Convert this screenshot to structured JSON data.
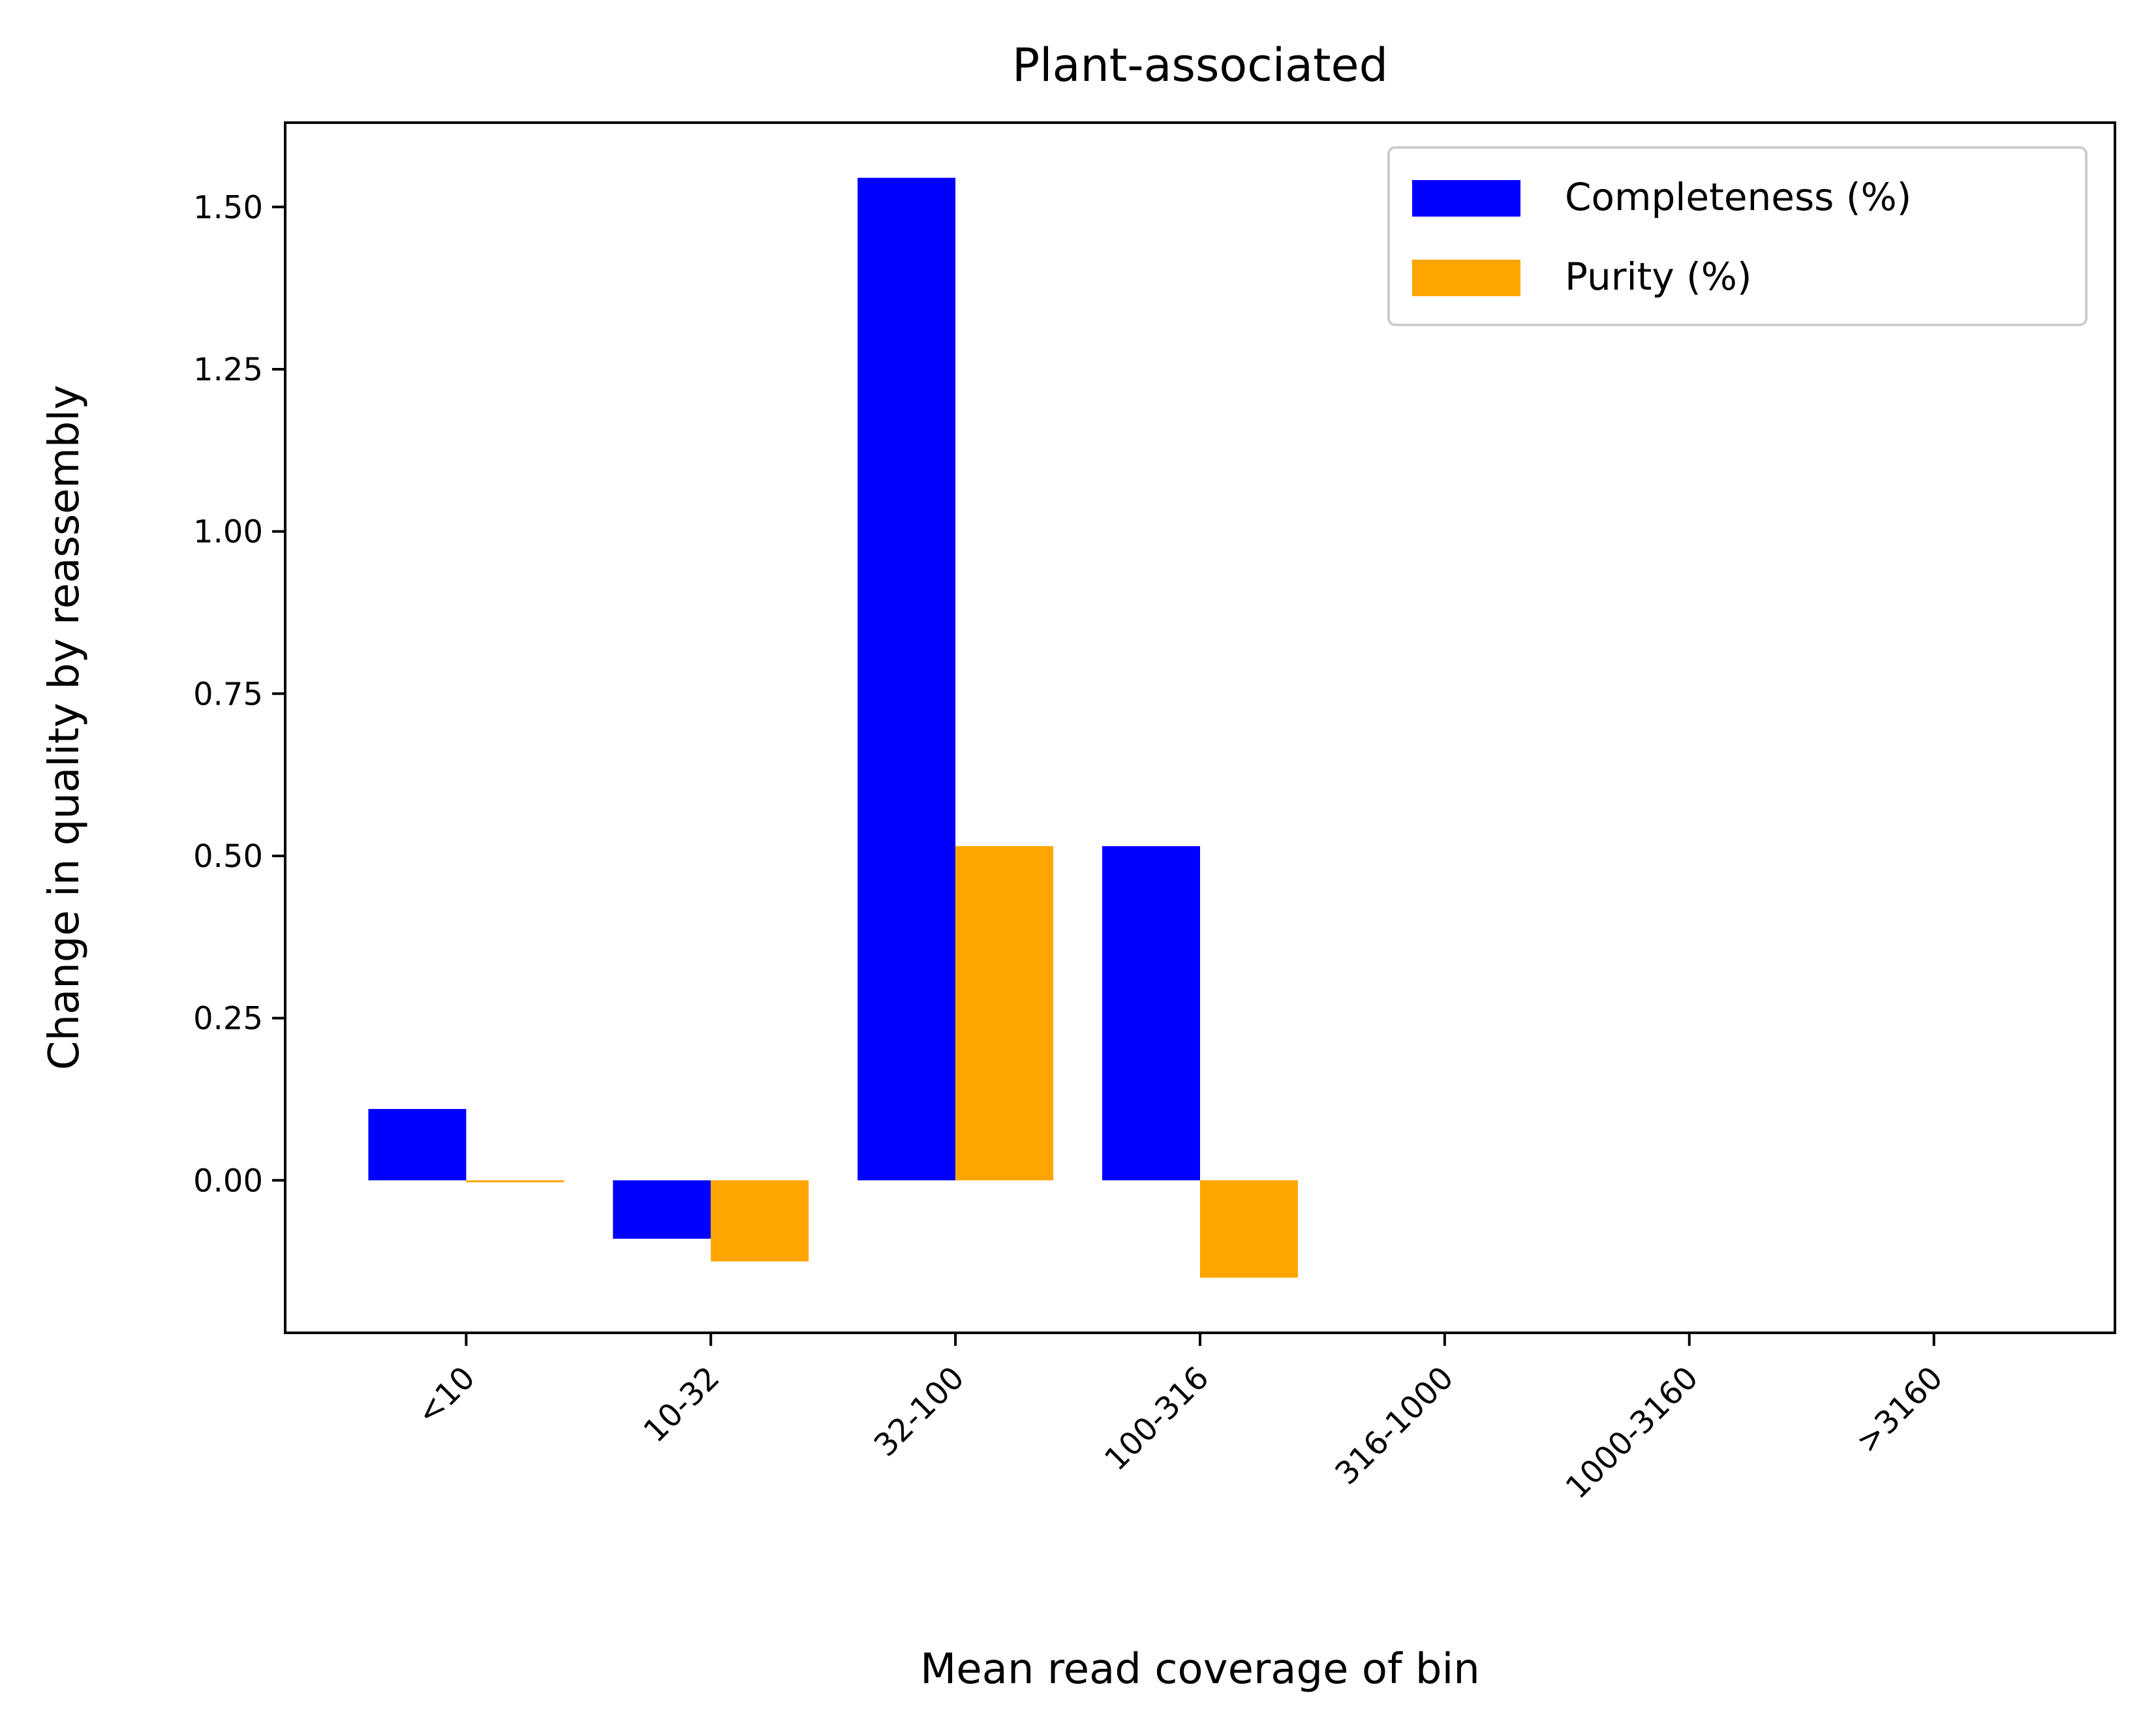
{
  "chart_data": {
    "type": "bar",
    "title": "Plant-associated",
    "xlabel": "Mean read coverage of bin",
    "ylabel": "Change in quality by reassembly",
    "categories": [
      "<10",
      "10-32",
      "32-100",
      "100-316",
      "316-1000",
      "1000-3160",
      ">3160"
    ],
    "series": [
      {
        "name": "Completeness (%)",
        "color": "#0000ff",
        "values": [
          0.11,
          -0.09,
          1.545,
          0.515,
          null,
          null,
          null
        ]
      },
      {
        "name": "Purity (%)",
        "color": "#ffa500",
        "values": [
          -0.003,
          -0.125,
          0.515,
          -0.15,
          null,
          null,
          null
        ]
      }
    ],
    "ylim": [
      -0.235,
      1.63
    ],
    "yticks": [
      0.0,
      0.25,
      0.5,
      0.75,
      1.0,
      1.25,
      1.5
    ],
    "ytick_labels": [
      "0.00",
      "0.25",
      "0.50",
      "0.75",
      "1.00",
      "1.25",
      "1.50"
    ],
    "xtick_rotation": -45,
    "grid": false,
    "legend_position": "top-right"
  }
}
